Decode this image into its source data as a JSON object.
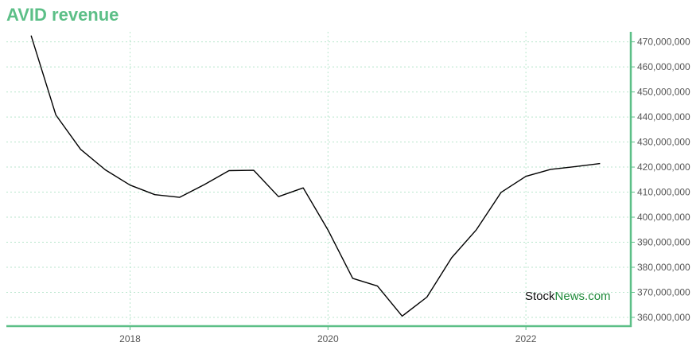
{
  "colors": {
    "title": "#5cbf87",
    "axis": "#5cbf87",
    "grid": "#b8e6cc",
    "line": "#000000",
    "tick_text": "#555555",
    "watermark_dark": "#111111",
    "watermark_green": "#1f8a3a"
  },
  "chart_data": {
    "type": "line",
    "title": "AVID revenue",
    "xlabel": "",
    "ylabel": "",
    "grid": true,
    "y_axis_side": "right",
    "xlim": [
      2016.75,
      2023.06
    ],
    "ylim": [
      356500000,
      474000000
    ],
    "x_ticks": [
      {
        "value": 2018,
        "label": "2018"
      },
      {
        "value": 2020,
        "label": "2020"
      },
      {
        "value": 2022,
        "label": "2022"
      }
    ],
    "y_ticks": [
      {
        "value": 360000000,
        "label": "360,000,000"
      },
      {
        "value": 370000000,
        "label": "370,000,000"
      },
      {
        "value": 380000000,
        "label": "380,000,000"
      },
      {
        "value": 390000000,
        "label": "390,000,000"
      },
      {
        "value": 400000000,
        "label": "400,000,000"
      },
      {
        "value": 410000000,
        "label": "410,000,000"
      },
      {
        "value": 420000000,
        "label": "420,000,000"
      },
      {
        "value": 430000000,
        "label": "430,000,000"
      },
      {
        "value": 440000000,
        "label": "440,000,000"
      },
      {
        "value": 450000000,
        "label": "450,000,000"
      },
      {
        "value": 460000000,
        "label": "460,000,000"
      },
      {
        "value": 470000000,
        "label": "470,000,000"
      }
    ],
    "series": [
      {
        "x": [
          2017.0,
          2017.25,
          2017.5,
          2017.75,
          2018.0,
          2018.25,
          2018.5,
          2018.75,
          2019.0,
          2019.25,
          2019.5,
          2019.75,
          2020.0,
          2020.25,
          2020.5,
          2020.75,
          2021.0,
          2021.25,
          2021.5,
          2021.75,
          2022.0,
          2022.25,
          2022.5,
          2022.75
        ],
        "values": [
          472500000,
          440800000,
          427100000,
          418900000,
          412800000,
          409000000,
          407900000,
          413000000,
          418600000,
          418700000,
          408200000,
          411700000,
          394900000,
          375600000,
          372500000,
          360500000,
          368100000,
          383800000,
          395000000,
          409900000,
          416300000,
          419100000,
          420200000,
          421400000
        ]
      }
    ]
  },
  "watermark": {
    "part1": "Stock",
    "part2": "News.com"
  }
}
